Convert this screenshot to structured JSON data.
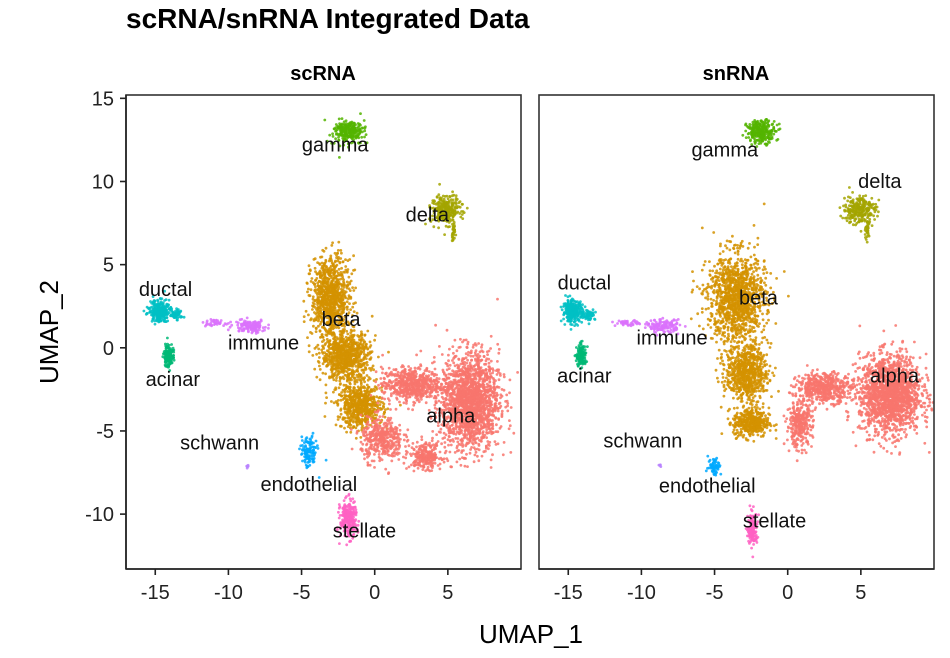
{
  "chart_data": {
    "type": "scatter",
    "title": "scRNA/snRNA Integrated Data",
    "xlabel": "UMAP_1",
    "ylabel": "UMAP_2",
    "xlim": [
      -17,
      10
    ],
    "ylim": [
      -13.3,
      15.2
    ],
    "xticks": [
      -15,
      -10,
      -5,
      0,
      5
    ],
    "yticks": [
      15,
      10,
      5,
      0,
      -5,
      -10
    ],
    "grid": false,
    "legend": "none",
    "colors": {
      "alpha": "#F8766D",
      "beta": "#D39200",
      "gamma": "#53B400",
      "delta": "#A3A500",
      "ductal": "#00BFC4",
      "acinar": "#00B876",
      "immune": "#DB72FB",
      "schwann": "#B983FF",
      "endothelial": "#00A9FF",
      "stellate": "#FF61C3"
    },
    "panels": [
      {
        "name": "scRNA",
        "clusters": [
          {
            "label": "gamma",
            "center": [
              -1.8,
              13.0
            ],
            "label_pos": [
              -2.7,
              11.8
            ]
          },
          {
            "label": "delta",
            "center": [
              5.0,
              8.3
            ],
            "label_pos": [
              3.6,
              7.6
            ]
          },
          {
            "label": "ductal",
            "center": [
              -14.7,
              2.0
            ],
            "label_pos": [
              -14.3,
              3.1
            ]
          },
          {
            "label": "acinar",
            "center": [
              -13.9,
              -0.4
            ],
            "label_pos": [
              -13.8,
              -2.3
            ]
          },
          {
            "label": "immune",
            "center": [
              -9.5,
              1.4
            ],
            "label_pos": [
              -7.6,
              -0.1
            ]
          },
          {
            "label": "beta",
            "center": [
              -3.0,
              1.0
            ],
            "label_pos": [
              -2.3,
              1.3
            ]
          },
          {
            "label": "alpha",
            "center": [
              6.5,
              -3.0
            ],
            "label_pos": [
              5.2,
              -4.5
            ]
          },
          {
            "label": "schwann",
            "center": [
              -8.8,
              -7.1
            ],
            "label_pos": [
              -10.6,
              -6.1
            ]
          },
          {
            "label": "endothelial",
            "center": [
              -4.5,
              -6.3
            ],
            "label_pos": [
              -4.5,
              -8.6
            ]
          },
          {
            "label": "stellate",
            "center": [
              -1.8,
              -10.0
            ],
            "label_pos": [
              -0.7,
              -11.4
            ]
          }
        ]
      },
      {
        "name": "snRNA",
        "clusters": [
          {
            "label": "gamma",
            "center": [
              -1.8,
              12.9
            ],
            "label_pos": [
              -4.3,
              11.5
            ]
          },
          {
            "label": "delta",
            "center": [
              4.8,
              8.4
            ],
            "label_pos": [
              6.3,
              9.6
            ]
          },
          {
            "label": "ductal",
            "center": [
              -14.7,
              2.3
            ],
            "label_pos": [
              -13.9,
              3.5
            ]
          },
          {
            "label": "acinar",
            "center": [
              -14.2,
              -0.5
            ],
            "label_pos": [
              -13.9,
              -2.1
            ]
          },
          {
            "label": "immune",
            "center": [
              -9.5,
              1.3
            ],
            "label_pos": [
              -7.9,
              0.2
            ]
          },
          {
            "label": "beta",
            "center": [
              -3.2,
              1.8
            ],
            "label_pos": [
              -2.0,
              2.6
            ]
          },
          {
            "label": "alpha",
            "center": [
              6.5,
              -2.6
            ],
            "label_pos": [
              7.3,
              -2.1
            ]
          },
          {
            "label": "schwann",
            "center": [
              -8.8,
              -7.0
            ],
            "label_pos": [
              -9.9,
              -6.0
            ]
          },
          {
            "label": "endothelial",
            "center": [
              -5.0,
              -7.1
            ],
            "label_pos": [
              -5.5,
              -8.7
            ]
          },
          {
            "label": "stellate",
            "center": [
              -2.4,
              -10.9
            ],
            "label_pos": [
              -0.9,
              -10.8
            ]
          }
        ]
      }
    ]
  }
}
